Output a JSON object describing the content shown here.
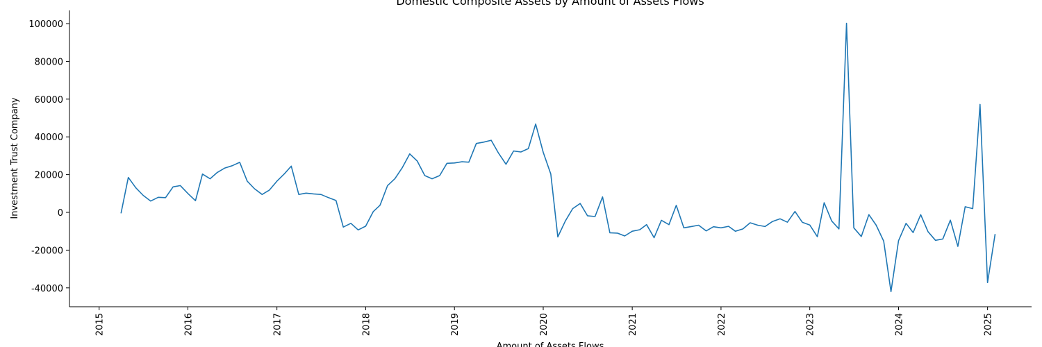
{
  "chart_data": {
    "type": "line",
    "title": "Domestic Composite Assets by Amount of Assets Flows",
    "xlabel": "Amount of Assets Flows",
    "ylabel": "Investment Trust Company",
    "x_range": [
      "2014-09-01",
      "2025-07-01"
    ],
    "ylim": [
      -50000,
      107000
    ],
    "x_ticks": [
      "2015",
      "2016",
      "2017",
      "2018",
      "2019",
      "2020",
      "2021",
      "2022",
      "2023",
      "2024",
      "2025"
    ],
    "y_ticks": [
      -40000,
      -20000,
      0,
      20000,
      40000,
      60000,
      80000,
      100000
    ],
    "grid": false,
    "color": "#1f77b4",
    "series": [
      {
        "name": "",
        "x": [
          "2015-04",
          "2015-05",
          "2015-06",
          "2015-07",
          "2015-08",
          "2015-09",
          "2015-10",
          "2015-11",
          "2015-12",
          "2016-01",
          "2016-02",
          "2016-03",
          "2016-04",
          "2016-05",
          "2016-06",
          "2016-07",
          "2016-08",
          "2016-09",
          "2016-10",
          "2016-11",
          "2016-12",
          "2017-01",
          "2017-02",
          "2017-03",
          "2017-04",
          "2017-05",
          "2017-06",
          "2017-07",
          "2017-08",
          "2017-09",
          "2017-10",
          "2017-11",
          "2017-12",
          "2018-01",
          "2018-02",
          "2018-03",
          "2018-04",
          "2018-05",
          "2018-06",
          "2018-07",
          "2018-08",
          "2018-09",
          "2018-10",
          "2018-11",
          "2018-12",
          "2019-01",
          "2019-02",
          "2019-03",
          "2019-04",
          "2019-05",
          "2019-06",
          "2019-07",
          "2019-08",
          "2019-09",
          "2019-10",
          "2019-11",
          "2019-12",
          "2020-01",
          "2020-02",
          "2020-03",
          "2020-04",
          "2020-05",
          "2020-06",
          "2020-07",
          "2020-08",
          "2020-09",
          "2020-10",
          "2020-11",
          "2020-12",
          "2021-01",
          "2021-02",
          "2021-03",
          "2021-04",
          "2021-05",
          "2021-06",
          "2021-07",
          "2021-08",
          "2021-09",
          "2021-10",
          "2021-11",
          "2021-12",
          "2022-01",
          "2022-02",
          "2022-03",
          "2022-04",
          "2022-05",
          "2022-06",
          "2022-07",
          "2022-08",
          "2022-09",
          "2022-10",
          "2022-11",
          "2022-12",
          "2023-01",
          "2023-02",
          "2023-03",
          "2023-04",
          "2023-05",
          "2023-06",
          "2023-07",
          "2023-08",
          "2023-09",
          "2023-10",
          "2023-11",
          "2023-12",
          "2024-01",
          "2024-02",
          "2024-03",
          "2024-04",
          "2024-05",
          "2024-06",
          "2024-07",
          "2024-08",
          "2024-09",
          "2024-10",
          "2024-11",
          "2024-12",
          "2025-01",
          "2025-02"
        ],
        "values": [
          -500,
          18500,
          13000,
          9000,
          6000,
          8000,
          7800,
          13500,
          14200,
          10000,
          6200,
          20300,
          17800,
          21200,
          23500,
          24700,
          26500,
          16500,
          12500,
          9500,
          11800,
          16500,
          20500,
          24500,
          9500,
          10200,
          9800,
          9500,
          7800,
          6300,
          -7800,
          -5800,
          -9300,
          -7300,
          400,
          3800,
          14200,
          17800,
          23800,
          31000,
          27200,
          19500,
          17800,
          19500,
          26000,
          26200,
          26800,
          26600,
          36500,
          37200,
          38200,
          31400,
          25500,
          32500,
          32000,
          33800,
          46800,
          31800,
          20300,
          -13000,
          -4500,
          2000,
          4700,
          -1800,
          -2200,
          8200,
          -10800,
          -11000,
          -12500,
          -10000,
          -9200,
          -6500,
          -13400,
          -4200,
          -6500,
          3700,
          -8200,
          -7500,
          -6800,
          -9800,
          -7600,
          -8200,
          -7400,
          -10000,
          -8800,
          -5500,
          -6800,
          -7500,
          -4800,
          -3400,
          -5200,
          500,
          -5200,
          -6700,
          -12900,
          5100,
          -4500,
          -8800,
          100200,
          -8200,
          -12800,
          -1200,
          -6800,
          -15200,
          -42000,
          -15000,
          -5800,
          -10700,
          -1200,
          -10200,
          -14800,
          -14100,
          -4100,
          -18000,
          3000,
          2000,
          57200,
          -37200,
          -11500
        ]
      }
    ]
  }
}
